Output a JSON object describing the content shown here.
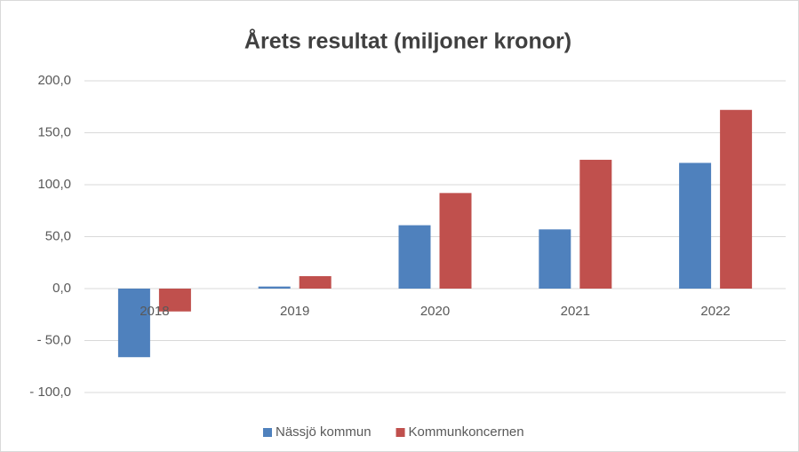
{
  "chart_data": {
    "type": "bar",
    "title": "Årets resultat (miljoner kronor)",
    "categories": [
      "2018",
      "2019",
      "2020",
      "2021",
      "2022"
    ],
    "series": [
      {
        "name": "Nässjö kommun",
        "color": "#4f81bd",
        "values": [
          -66,
          2,
          61,
          57,
          121
        ]
      },
      {
        "name": "Kommunkoncernen",
        "color": "#c0504d",
        "values": [
          -22,
          12,
          92,
          124,
          172
        ]
      }
    ],
    "ylim": [
      -100,
      200
    ],
    "yticks": [
      {
        "value": -100,
        "label": "- 100,0"
      },
      {
        "value": -50,
        "label": "- 50,0"
      },
      {
        "value": 0,
        "label": "0,0"
      },
      {
        "value": 50,
        "label": "50,0"
      },
      {
        "value": 100,
        "label": "100,0"
      },
      {
        "value": 150,
        "label": "150,0"
      },
      {
        "value": 200,
        "label": "200,0"
      }
    ],
    "grid": true,
    "legend": "bottom"
  }
}
